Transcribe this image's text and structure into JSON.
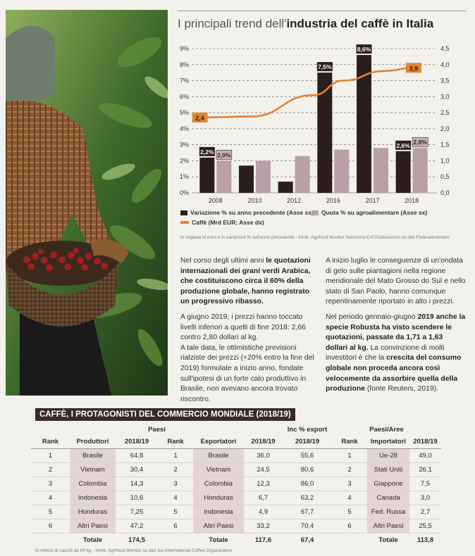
{
  "chart_title": {
    "normal": "I principali trend dell'",
    "bold": "industria del caffè in Italia"
  },
  "chart_data": {
    "type": "bar+line",
    "categories": [
      "2008",
      "2010",
      "2012",
      "2016",
      "2017",
      "2018"
    ],
    "left_axis": {
      "ticks": [
        "0%",
        "1%",
        "2%",
        "3%",
        "4%",
        "5%",
        "6%",
        "7%",
        "8%",
        "9%"
      ],
      "range": [
        0,
        9
      ]
    },
    "right_axis": {
      "ticks": [
        "0,0",
        "0,5",
        "1,0",
        "1,5",
        "2,0",
        "2,5",
        "3,0",
        "3,5",
        "4,0",
        "4,5"
      ],
      "range": [
        0,
        4.5
      ]
    },
    "series": [
      {
        "name": "Variazione % su anno precedente (Asse sx)",
        "axis": "left",
        "kind": "bar",
        "color": "#2b1e1c",
        "values": [
          2.2,
          1.7,
          0.7,
          7.5,
          8.6,
          2.6
        ],
        "labels": [
          "2,2%",
          "",
          "",
          "7,5%",
          "8,6%",
          "2,6%"
        ]
      },
      {
        "name": "Quota % su agroalimentare (Asse sx)",
        "axis": "left",
        "kind": "bar",
        "color": "#b8a0a6",
        "values": [
          2.0,
          2.0,
          2.3,
          2.7,
          2.8,
          2.8
        ],
        "labels": [
          "2,0%",
          "",
          "",
          "",
          "",
          "2,8%"
        ]
      },
      {
        "name": "Caffè (Mrd EUR; Asse dx)",
        "axis": "right",
        "kind": "line",
        "color": "#e08433",
        "start_label": "2,4",
        "end_label": "3,9",
        "x": [
          0.1,
          1.4,
          3.0,
          3.75,
          4.8,
          5.55
        ],
        "values": [
          2.35,
          2.38,
          3.05,
          3.5,
          3.8,
          3.9
        ]
      }
    ]
  },
  "chart_note": "In migliaia di euro e in variazioni % sull'anno precedente - fonte: Agrifood Monitor Nomisma-Crif Elaborazioni su dati Federalimentare",
  "text_left": {
    "p1_pre": "Nel corso degli ultimi anni ",
    "p1_bold": "le quotazioni internazionali dei grani verdi Arabica, che costituiscono circa il 60% della produzione globale, hanno registrato un progressivo ribasso.",
    "p2": "A giugno 2019, i prezzi hanno toccato livelli inferiori a quelli di fine 2018: 2,66 contro 2,80 dollari al kg.",
    "p3": "A tale data, le ottimistiche previsioni rialziste dei prezzi (+20% entro la fine del 2019) formulate a inizio anno, fondate sull'ipotesi di un forte calo produttivo in Brasile, non avevano ancora trovato riscontro."
  },
  "text_right": {
    "p1": "A inizio luglio le conseguenze di un'ondata di gelo sulle piantagioni nella regione meridionale del Mato Grosso do Sul e nello stato di San Paolo, hanno comunque repentinamente riportato in alto i prezzi.",
    "p2_pre": "Nel periodo gennaio-giugno ",
    "p2_bold": "2019 anche la specie Robusta ha visto scendere le quotazioni, passate da 1,71 a 1,63 dollari al kg.",
    "p2_mid": " La convinzione di molti investitori è che la ",
    "p2_bold2": "crescita del consumo globale non proceda ancora così velocemente da assorbire quella della produzione",
    "p2_end": " (fonte Reuters, 2019)."
  },
  "table": {
    "title": "CAFFÈ, I PROTAGONISTI DEL COMMERCIO MONDIALE (2018/19)",
    "group_paesi": "Paesi",
    "group_inc": "Inc % export",
    "group_aree": "Paesi/Aree",
    "headers": [
      "Rank",
      "Produttori",
      "2018/19",
      "Rank",
      "Esportatori",
      "2018/19",
      "2018/19",
      "Rank",
      "Importatori",
      "2018/19"
    ],
    "rows": [
      [
        "1",
        "Brasile",
        "64,8",
        "1",
        "Brasile",
        "36,0",
        "55,6",
        "1",
        "Ue-28",
        "49,0"
      ],
      [
        "2",
        "Vietnam",
        "30,4",
        "2",
        "Vietnam",
        "24,5",
        "80,6",
        "2",
        "Stati Uniti",
        "26,1"
      ],
      [
        "3",
        "Colombia",
        "14,3",
        "3",
        "Colombia",
        "12,3",
        "86,0",
        "3",
        "Giappone",
        "7,5"
      ],
      [
        "4",
        "Indonesia",
        "10,6",
        "4",
        "Honduras",
        "6,7",
        "63,2",
        "4",
        "Canada",
        "3,0"
      ],
      [
        "5",
        "Honduras",
        "7,25",
        "5",
        "Indonesia",
        "4,9",
        "67,7",
        "5",
        "Fed. Russa",
        "2,7"
      ],
      [
        "6",
        "Altri Paesi",
        "47,2",
        "6",
        "Altri Paesi",
        "33,2",
        "70,4",
        "6",
        "Altri Paesi",
        "25,5"
      ]
    ],
    "totals": {
      "label": "Totale",
      "produttori": "174,5",
      "esportatori": "117,6",
      "inc": "67,4",
      "importatori": "113,8"
    }
  },
  "table_note": "In milioni di sacchi da 60 kg - fonte: Agrifood Monitor su dati Ico-International Coffee Organisation"
}
